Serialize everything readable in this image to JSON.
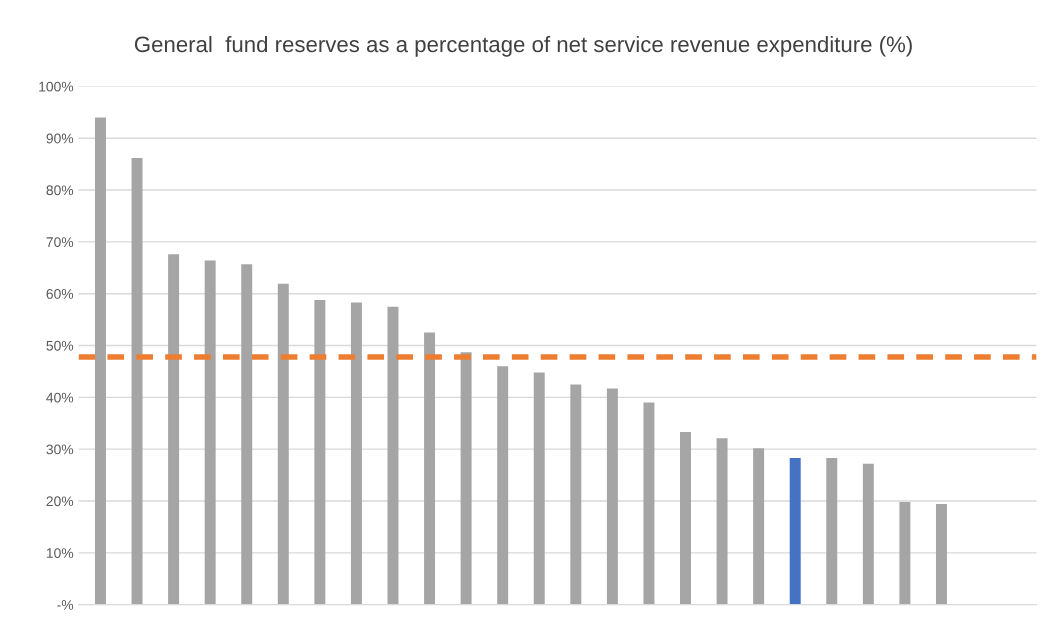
{
  "chart_data": {
    "type": "bar",
    "title": "General  fund reserves as a percentage of net service revenue expenditure (%)",
    "categories": [
      null,
      null,
      null,
      null,
      null,
      null,
      null,
      null,
      null,
      null,
      null,
      null,
      null,
      null,
      null,
      null,
      null,
      null,
      null,
      null,
      null,
      null,
      null,
      null
    ],
    "values": [
      94,
      86.2,
      67.6,
      66.4,
      65.7,
      61.9,
      58.8,
      58.3,
      57.5,
      52.5,
      48.7,
      46,
      44.8,
      42.5,
      41.7,
      39,
      33.3,
      32.1,
      30.2,
      28.3,
      28.3,
      27.2,
      19.8,
      19.4
    ],
    "colors": [
      "#a5a5a5",
      "#a5a5a5",
      "#a5a5a5",
      "#a5a5a5",
      "#a5a5a5",
      "#a5a5a5",
      "#a5a5a5",
      "#a5a5a5",
      "#a5a5a5",
      "#a5a5a5",
      "#a5a5a5",
      "#a5a5a5",
      "#a5a5a5",
      "#a5a5a5",
      "#a5a5a5",
      "#a5a5a5",
      "#a5a5a5",
      "#a5a5a5",
      "#a5a5a5",
      "#4472c4",
      "#a5a5a5",
      "#a5a5a5",
      "#a5a5a5",
      "#a5a5a5"
    ],
    "ylim": [
      0,
      100
    ],
    "yticks": [
      {
        "value": 0,
        "label": "-%"
      },
      {
        "value": 10,
        "label": "10%"
      },
      {
        "value": 20,
        "label": "20%"
      },
      {
        "value": 30,
        "label": "30%"
      },
      {
        "value": 40,
        "label": "40%"
      },
      {
        "value": 50,
        "label": "50%"
      },
      {
        "value": 60,
        "label": "60%"
      },
      {
        "value": 70,
        "label": "70%"
      },
      {
        "value": 80,
        "label": "80%"
      },
      {
        "value": 90,
        "label": "90%"
      },
      {
        "value": 100,
        "label": "100%"
      }
    ],
    "grid": "y",
    "ref_lines": [
      {
        "axis": "y",
        "value": 47.8,
        "color": "#ed7d31",
        "line_style": "dashed"
      }
    ]
  }
}
